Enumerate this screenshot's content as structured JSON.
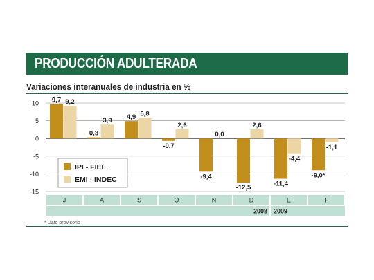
{
  "header": {
    "title": "PRODUCCIÓN ADULTERADA"
  },
  "subtitle": "Variaciones interanuales de industria en %",
  "footnote": "* Dato provisorio",
  "colors": {
    "banner": "#1e6b48",
    "ipi": "#c28e1c",
    "emi": "#edd6a6",
    "band": "#bfe0d3"
  },
  "chart_data": {
    "type": "bar",
    "categories": [
      "J",
      "A",
      "S",
      "O",
      "N",
      "D",
      "E",
      "F"
    ],
    "series": [
      {
        "name": "IPI - FIEL",
        "values": [
          9.7,
          0.3,
          4.9,
          -0.7,
          -9.4,
          -12.5,
          -11.4,
          -9.0
        ],
        "labels": [
          "9,7",
          "0,3",
          "4,9",
          "-0,7",
          "-9,4",
          "-12,5",
          "-11,4",
          "-9,0*"
        ]
      },
      {
        "name": "EMI - INDEC",
        "values": [
          9.2,
          3.9,
          5.8,
          2.6,
          0.0,
          2.6,
          -4.4,
          -1.1
        ],
        "labels": [
          "9,2",
          "3,9",
          "5,8",
          "2,6",
          "0,0",
          "2,6",
          "-4,4",
          "-1,1"
        ]
      }
    ],
    "ylim": [
      -15,
      10
    ],
    "yticks": [
      10,
      5,
      0,
      -5,
      -10,
      -15
    ],
    "ytick_labels": [
      "10",
      "5",
      "0",
      "-5",
      "-10",
      "-15"
    ],
    "years": [
      "2008",
      "2009"
    ],
    "legend_position": "lower-left",
    "grid": true
  }
}
